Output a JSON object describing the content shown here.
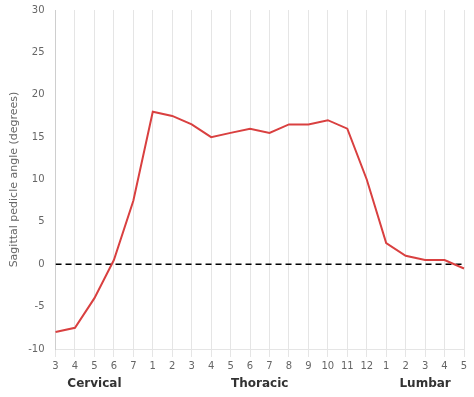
{
  "chart_data": {
    "type": "line",
    "ylabel": "Sagittal pedicle angle (degrees)",
    "categories": [
      "3",
      "4",
      "5",
      "6",
      "7",
      "1",
      "2",
      "3",
      "4",
      "5",
      "6",
      "7",
      "8",
      "9",
      "10",
      "11",
      "12",
      "1",
      "2",
      "3",
      "4",
      "5"
    ],
    "values": [
      -8,
      -7.5,
      -4,
      0.5,
      7.5,
      18,
      17.5,
      16.5,
      15,
      15.5,
      16,
      15.5,
      16.5,
      16.5,
      17,
      16,
      10,
      2.5,
      1,
      0.5,
      0.5,
      -0.5
    ],
    "color": "#d94040",
    "ylim": [
      -10,
      30
    ],
    "yticks": [
      -10,
      -5,
      0,
      5,
      10,
      15,
      20,
      25,
      30
    ],
    "grid": "x",
    "annotations": [
      {
        "text": "Cervical",
        "x": 2.0
      },
      {
        "text": "Thoracic",
        "x": 10.5
      },
      {
        "text": "Lumbar",
        "x": 19.0
      },
      {
        "y": 0,
        "line_style": "dashed",
        "color": "black"
      }
    ]
  }
}
